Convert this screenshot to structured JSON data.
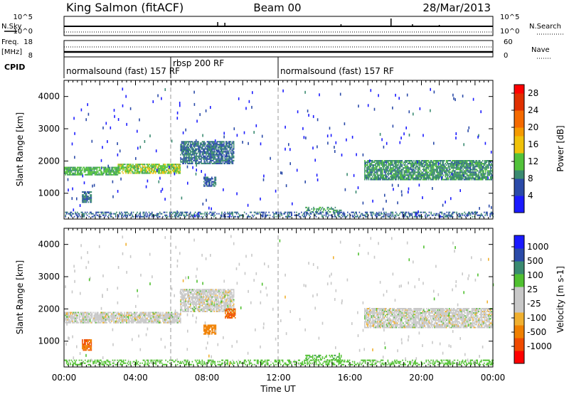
{
  "header": {
    "station": "King Salmon (fitACF)",
    "beam": "Beam 00",
    "date": "28/Mar/2013"
  },
  "status_panels": {
    "noise": {
      "left_label": "N.Sky",
      "right_label": "N.Search",
      "left_ticks": [
        "10^5",
        "10^0"
      ],
      "right_ticks": [
        "10^5",
        "10^0"
      ]
    },
    "freq": {
      "left_label_1": "Freq.",
      "left_label_2": "[MHz]",
      "right_label": "Nave",
      "left_ticks": [
        "18",
        "8"
      ],
      "right_ticks": [
        "60",
        "0"
      ]
    },
    "cpid": {
      "label": "CPID",
      "segments": [
        {
          "name": "normalsound (fast) 157 RF",
          "start_hour": 0,
          "end_hour": 6
        },
        {
          "name": "rbsp 200 RF",
          "start_hour": 6,
          "end_hour": 12
        },
        {
          "name": "normalsound (fast) 157 RF",
          "start_hour": 12,
          "end_hour": 24
        }
      ]
    }
  },
  "colors": {
    "power_scale": [
      "#1a1aff",
      "#2a4aa8",
      "#3a8a70",
      "#52c23a",
      "#f0c20a",
      "#f59a00",
      "#f56a00",
      "#e03000",
      "#ff0000"
    ],
    "velocity_scale": [
      "#ff0000",
      "#f04a00",
      "#f08000",
      "#f0b030",
      "#c8c8c8",
      "#c8c8c8",
      "#50c030",
      "#3a8a70",
      "#2a4aa8",
      "#1a1aff"
    ]
  },
  "chart_data": [
    {
      "type": "heatmap",
      "name": "power",
      "xlabel": "Time UT",
      "ylabel": "Slant Range [km]",
      "xlim": [
        0,
        24
      ],
      "ylim": [
        200,
        4500
      ],
      "y_ticks": [
        "1000",
        "2000",
        "3000",
        "4000"
      ],
      "colorbar": {
        "label": "Power [dB]",
        "range": [
          0,
          30
        ],
        "tick_labels": [
          "4",
          "8",
          "12",
          "16",
          "20",
          "24",
          "28"
        ]
      },
      "echo_regions": [
        {
          "t_start": 0.0,
          "t_end": 3.0,
          "range_start": 1550,
          "range_end": 1800,
          "value": 10
        },
        {
          "t_start": 3.0,
          "t_end": 6.5,
          "range_start": 1600,
          "range_end": 1900,
          "value": 12
        },
        {
          "t_start": 6.5,
          "t_end": 9.5,
          "range_start": 1900,
          "range_end": 2600,
          "value": 6
        },
        {
          "t_start": 1.0,
          "t_end": 1.5,
          "range_start": 700,
          "range_end": 1050,
          "value": 6
        },
        {
          "t_start": 7.8,
          "t_end": 8.5,
          "range_start": 1200,
          "range_end": 1500,
          "value": 5
        },
        {
          "t_start": 13.5,
          "t_end": 15.5,
          "range_start": 400,
          "range_end": 550,
          "value": 8
        },
        {
          "t_start": 16.8,
          "t_end": 24.0,
          "range_start": 1400,
          "range_end": 2000,
          "value": 8
        },
        {
          "t_start": 0.0,
          "t_end": 24.0,
          "range_start": 250,
          "range_end": 400,
          "value": 5
        }
      ]
    },
    {
      "type": "heatmap",
      "name": "velocity",
      "xlabel": "Time UT",
      "ylabel": "Slant Range [km]",
      "xlim": [
        0,
        24
      ],
      "ylim": [
        200,
        4500
      ],
      "x_ticks": [
        "00:00",
        "04:00",
        "08:00",
        "12:00",
        "16:00",
        "20:00",
        "00:00"
      ],
      "y_ticks": [
        "1000",
        "2000",
        "3000",
        "4000"
      ],
      "colorbar": {
        "label": "Velocity [m s-1]",
        "tick_labels": [
          "-1000",
          "-500",
          "-100",
          "-25",
          "25",
          "100",
          "500",
          "1000"
        ]
      },
      "echo_regions": [
        {
          "t_start": 0.0,
          "t_end": 6.5,
          "range_start": 1550,
          "range_end": 1900,
          "value": 0
        },
        {
          "t_start": 6.5,
          "t_end": 9.5,
          "range_start": 1900,
          "range_end": 2600,
          "value": 0
        },
        {
          "t_start": 1.0,
          "t_end": 1.5,
          "range_start": 700,
          "range_end": 1050,
          "value": -500
        },
        {
          "t_start": 7.8,
          "t_end": 8.5,
          "range_start": 1200,
          "range_end": 1500,
          "value": -300
        },
        {
          "t_start": 9.0,
          "t_end": 9.6,
          "range_start": 1700,
          "range_end": 2000,
          "value": -500
        },
        {
          "t_start": 13.5,
          "t_end": 15.5,
          "range_start": 400,
          "range_end": 550,
          "value": 80
        },
        {
          "t_start": 16.8,
          "t_end": 24.0,
          "range_start": 1400,
          "range_end": 2000,
          "value": 0
        },
        {
          "t_start": 0.0,
          "t_end": 24.0,
          "range_start": 250,
          "range_end": 400,
          "value": 50
        }
      ]
    }
  ]
}
